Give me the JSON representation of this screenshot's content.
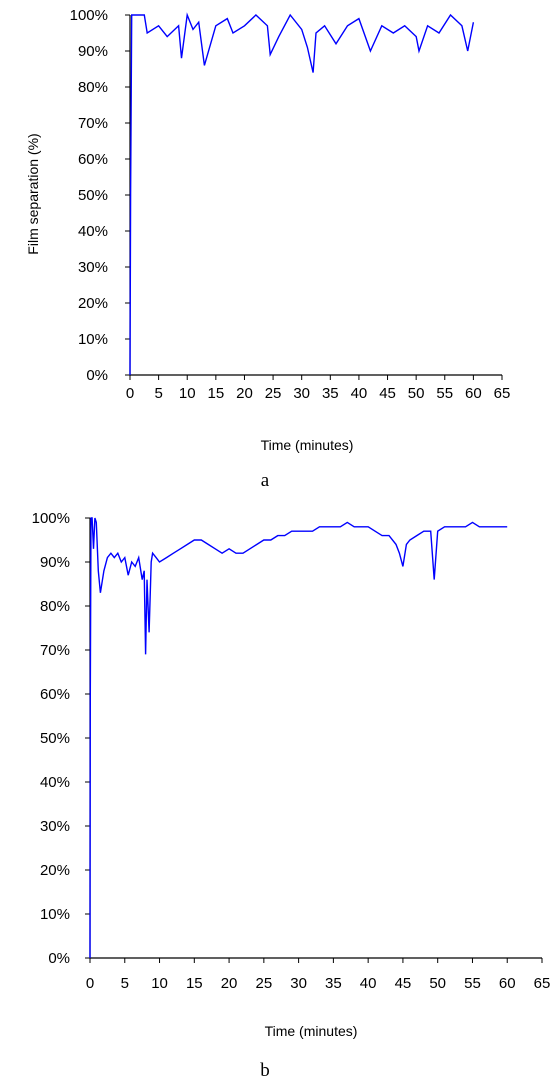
{
  "chart_data": [
    {
      "type": "line",
      "panel_label": "a",
      "xlabel": "Time (minutes)",
      "ylabel": "Film separation (%)",
      "xlim": [
        0,
        65
      ],
      "ylim": [
        0,
        100
      ],
      "x_ticks": [
        "0",
        "5",
        "10",
        "15",
        "20",
        "25",
        "30",
        "35",
        "40",
        "45",
        "50",
        "55",
        "60",
        "65"
      ],
      "y_ticks": [
        "0%",
        "10%",
        "20%",
        "30%",
        "40%",
        "50%",
        "60%",
        "70%",
        "80%",
        "90%",
        "100%"
      ],
      "grid": false,
      "line_color": "#0000ff",
      "series": [
        {
          "x": [
            0,
            0.1,
            0.3,
            1,
            2.5,
            3,
            5,
            6.5,
            8.5,
            9,
            10,
            11,
            12,
            13,
            15,
            17,
            18,
            20,
            22,
            24,
            24.5,
            26,
            28,
            30,
            31,
            32,
            32.5,
            34,
            36,
            38,
            40,
            42,
            44,
            46,
            48,
            50,
            50.5,
            52,
            54,
            56,
            58,
            59,
            60
          ],
          "y": [
            0,
            50,
            100,
            100,
            100,
            95,
            97,
            94,
            97,
            88,
            100,
            96,
            98,
            86,
            97,
            99,
            95,
            97,
            100,
            97,
            89,
            94,
            100,
            96,
            91,
            84,
            95,
            97,
            92,
            97,
            99,
            90,
            97,
            95,
            97,
            94,
            90,
            97,
            95,
            100,
            97,
            90,
            98
          ]
        }
      ]
    },
    {
      "type": "line",
      "panel_label": "b",
      "xlabel": "Time (minutes)",
      "ylabel": "",
      "xlim": [
        0,
        65
      ],
      "ylim": [
        0,
        100
      ],
      "x_ticks": [
        "0",
        "5",
        "10",
        "15",
        "20",
        "25",
        "30",
        "35",
        "40",
        "45",
        "50",
        "55",
        "60",
        "65"
      ],
      "y_ticks": [
        "0%",
        "10%",
        "20%",
        "30%",
        "40%",
        "50%",
        "60%",
        "70%",
        "80%",
        "90%",
        "100%"
      ],
      "grid": false,
      "line_color": "#0000ff",
      "series": [
        {
          "x": [
            0,
            0.05,
            0.15,
            0.3,
            0.5,
            0.7,
            0.9,
            1.2,
            1.5,
            2,
            2.5,
            3,
            3.5,
            4,
            4.5,
            5,
            5.5,
            6,
            6.5,
            7,
            7.5,
            7.8,
            8,
            8.2,
            8.5,
            8.8,
            9,
            9.5,
            10,
            11,
            12,
            13,
            14,
            15,
            16,
            17,
            18,
            19,
            20,
            21,
            22,
            23,
            24,
            25,
            26,
            27,
            28,
            29,
            30,
            31,
            32,
            33,
            34,
            35,
            36,
            37,
            38,
            39,
            40,
            41,
            42,
            43,
            44,
            44.5,
            45,
            45.5,
            46,
            47,
            48,
            49,
            49.5,
            50,
            51,
            52,
            53,
            54,
            55,
            56,
            57,
            58,
            59,
            60
          ],
          "y": [
            0,
            60,
            100,
            100,
            93,
            100,
            99,
            88,
            83,
            88,
            91,
            92,
            91,
            92,
            90,
            91,
            87,
            90,
            89,
            91,
            86,
            88,
            69,
            86,
            74,
            90,
            92,
            91,
            90,
            91,
            92,
            93,
            94,
            95,
            95,
            94,
            93,
            92,
            93,
            92,
            92,
            93,
            94,
            95,
            95,
            96,
            96,
            97,
            97,
            97,
            97,
            98,
            98,
            98,
            98,
            99,
            98,
            98,
            98,
            97,
            96,
            96,
            94,
            92,
            89,
            94,
            95,
            96,
            97,
            97,
            86,
            97,
            98,
            98,
            98,
            98,
            99,
            98,
            98,
            98,
            98,
            98
          ]
        }
      ]
    }
  ]
}
